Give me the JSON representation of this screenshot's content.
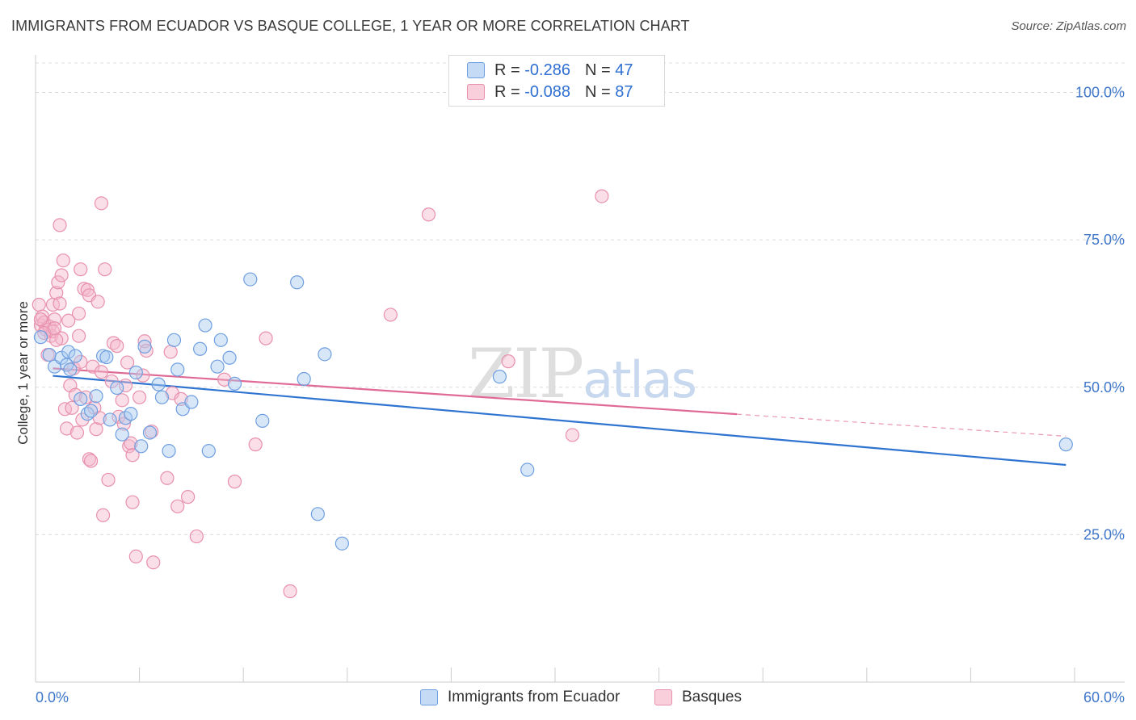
{
  "header": {
    "title": "IMMIGRANTS FROM ECUADOR VS BASQUE COLLEGE, 1 YEAR OR MORE CORRELATION CHART",
    "source": "Source: ZipAtlas.com"
  },
  "legend": {
    "rows": [
      {
        "r_label": "R =",
        "r_value": "-0.286",
        "n_label": "N =",
        "n_value": "47"
      },
      {
        "r_label": "R =",
        "r_value": "-0.088",
        "n_label": "N =",
        "n_value": "87"
      }
    ]
  },
  "bottom_legend": [
    "Immigrants from Ecuador",
    "Basques"
  ],
  "watermark": "ZIPatlas",
  "colors": {
    "blue_fill": "#a9c9f0",
    "blue_stroke": "#6f9fe0",
    "blue_line": "#2f74d0",
    "pink_fill": "#f5b8cb",
    "pink_stroke": "#e890ad",
    "pink_line": "#e06a96",
    "tick_label": "#3f77c9",
    "grid": "#dcdcdc"
  },
  "chart_data": {
    "type": "scatter",
    "title": "IMMIGRANTS FROM ECUADOR VS BASQUE COLLEGE, 1 YEAR OR MORE CORRELATION CHART",
    "xlabel": "",
    "ylabel": "College, 1 year or more",
    "xlim": [
      0,
      60
    ],
    "ylim": [
      0,
      105
    ],
    "x_tick_labels": [
      "0.0%",
      "60.0%"
    ],
    "y_ticks": [
      25,
      50,
      75,
      100
    ],
    "y_tick_labels": [
      "25.0%",
      "50.0%",
      "75.0%",
      "100.0%"
    ],
    "grid": true,
    "legend_position": "top-center",
    "series": [
      {
        "name": "Immigrants from Ecuador",
        "r": -0.286,
        "n": 47,
        "trend": {
          "x0": 0,
          "y0": 52.2,
          "x1": 60,
          "y1": 36.7,
          "solid_until": 60
        },
        "points": [
          [
            0.3,
            58.5
          ],
          [
            0.8,
            55.5
          ],
          [
            1.1,
            53.5
          ],
          [
            1.5,
            55.0
          ],
          [
            1.9,
            56.0
          ],
          [
            2.3,
            55.3
          ],
          [
            2.6,
            48.0
          ],
          [
            1.8,
            53.8
          ],
          [
            3.0,
            45.5
          ],
          [
            3.2,
            46.0
          ],
          [
            3.5,
            48.5
          ],
          [
            3.9,
            55.3
          ],
          [
            4.1,
            55.1
          ],
          [
            4.3,
            44.5
          ],
          [
            4.7,
            49.9
          ],
          [
            5.0,
            42.0
          ],
          [
            5.2,
            44.8
          ],
          [
            5.5,
            45.5
          ],
          [
            5.8,
            52.5
          ],
          [
            6.1,
            40.0
          ],
          [
            6.3,
            56.9
          ],
          [
            6.6,
            42.3
          ],
          [
            7.1,
            50.5
          ],
          [
            7.3,
            48.3
          ],
          [
            7.7,
            39.2
          ],
          [
            8.0,
            58.0
          ],
          [
            8.2,
            53.0
          ],
          [
            8.5,
            46.3
          ],
          [
            9.0,
            47.5
          ],
          [
            9.5,
            56.5
          ],
          [
            9.8,
            60.5
          ],
          [
            10.0,
            39.2
          ],
          [
            10.5,
            53.5
          ],
          [
            10.7,
            58.0
          ],
          [
            11.2,
            55.0
          ],
          [
            11.5,
            50.6
          ],
          [
            12.4,
            68.3
          ],
          [
            13.1,
            44.3
          ],
          [
            15.1,
            67.8
          ],
          [
            15.5,
            51.4
          ],
          [
            16.3,
            28.5
          ],
          [
            16.7,
            55.6
          ],
          [
            17.7,
            23.5
          ],
          [
            26.8,
            51.8
          ],
          [
            28.4,
            36.0
          ],
          [
            59.5,
            40.3
          ],
          [
            2.0,
            53.0
          ]
        ]
      },
      {
        "name": "Basques",
        "r": -0.088,
        "n": 87,
        "trend": {
          "x0": 0,
          "y0": 53.4,
          "x1": 60,
          "y1": 41.6,
          "solid_until": 40.5
        },
        "points": [
          [
            0.2,
            64.0
          ],
          [
            0.3,
            60.5
          ],
          [
            0.4,
            62.0
          ],
          [
            0.5,
            61.0
          ],
          [
            0.6,
            59.8
          ],
          [
            0.8,
            60.3
          ],
          [
            0.9,
            58.7
          ],
          [
            1.0,
            64.0
          ],
          [
            1.1,
            61.5
          ],
          [
            1.2,
            66.0
          ],
          [
            1.3,
            67.8
          ],
          [
            1.4,
            64.2
          ],
          [
            1.5,
            69.0
          ],
          [
            1.6,
            71.5
          ],
          [
            1.4,
            77.5
          ],
          [
            0.7,
            55.5
          ],
          [
            1.0,
            59.5
          ],
          [
            1.5,
            58.3
          ],
          [
            1.7,
            46.3
          ],
          [
            1.8,
            43.0
          ],
          [
            2.0,
            50.3
          ],
          [
            2.1,
            46.5
          ],
          [
            2.2,
            53.2
          ],
          [
            2.3,
            48.7
          ],
          [
            2.4,
            42.3
          ],
          [
            2.5,
            58.7
          ],
          [
            2.5,
            62.5
          ],
          [
            2.6,
            70.0
          ],
          [
            2.6,
            54.3
          ],
          [
            2.7,
            44.5
          ],
          [
            2.8,
            66.7
          ],
          [
            2.9,
            48.3
          ],
          [
            3.0,
            66.5
          ],
          [
            3.1,
            65.6
          ],
          [
            3.1,
            37.8
          ],
          [
            3.2,
            37.5
          ],
          [
            3.3,
            53.5
          ],
          [
            3.4,
            46.5
          ],
          [
            3.5,
            42.9
          ],
          [
            3.6,
            64.5
          ],
          [
            3.7,
            44.8
          ],
          [
            3.8,
            52.6
          ],
          [
            3.8,
            81.2
          ],
          [
            3.9,
            28.3
          ],
          [
            4.0,
            70.0
          ],
          [
            4.2,
            34.3
          ],
          [
            4.4,
            51.0
          ],
          [
            4.5,
            57.5
          ],
          [
            4.7,
            57.0
          ],
          [
            4.8,
            45.0
          ],
          [
            5.0,
            47.8
          ],
          [
            5.1,
            43.8
          ],
          [
            5.2,
            50.3
          ],
          [
            5.3,
            54.2
          ],
          [
            5.4,
            40.0
          ],
          [
            5.5,
            40.5
          ],
          [
            5.6,
            38.5
          ],
          [
            5.6,
            30.5
          ],
          [
            5.8,
            21.3
          ],
          [
            6.0,
            48.3
          ],
          [
            6.2,
            52.0
          ],
          [
            6.3,
            57.8
          ],
          [
            6.4,
            56.2
          ],
          [
            6.7,
            42.5
          ],
          [
            6.8,
            20.3
          ],
          [
            7.6,
            34.6
          ],
          [
            7.8,
            56.0
          ],
          [
            7.9,
            49.0
          ],
          [
            8.2,
            29.8
          ],
          [
            8.4,
            48.0
          ],
          [
            8.8,
            31.4
          ],
          [
            9.3,
            24.7
          ],
          [
            10.9,
            51.3
          ],
          [
            11.5,
            34.0
          ],
          [
            12.7,
            40.3
          ],
          [
            13.3,
            58.3
          ],
          [
            14.7,
            15.4
          ],
          [
            20.5,
            62.3
          ],
          [
            22.7,
            79.3
          ],
          [
            27.3,
            54.4
          ],
          [
            31.0,
            41.9
          ],
          [
            32.7,
            82.4
          ],
          [
            0.5,
            59.2
          ],
          [
            1.2,
            58.0
          ],
          [
            1.9,
            61.3
          ],
          [
            0.3,
            61.5
          ],
          [
            1.1,
            60.0
          ]
        ]
      }
    ]
  }
}
